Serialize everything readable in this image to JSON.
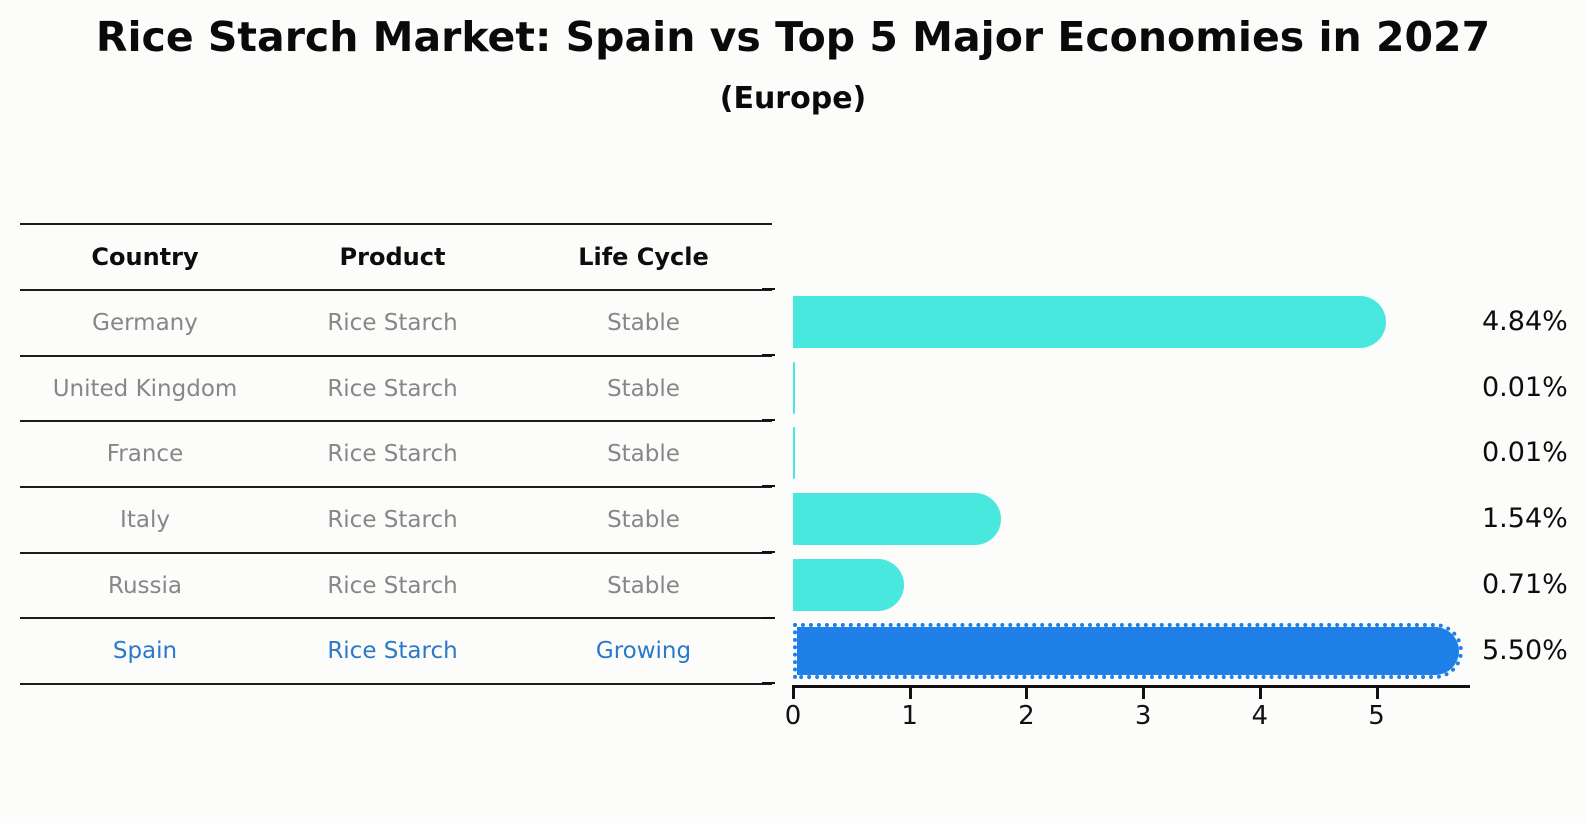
{
  "title": "Rice Starch Market: Spain vs Top 5 Major Economies in 2027",
  "subtitle": "(Europe)",
  "table": {
    "columns": [
      "Country",
      "Product",
      "Life Cycle"
    ]
  },
  "chart_data": {
    "type": "bar",
    "orientation": "horizontal",
    "title": "Rice Starch Market: Spain vs Top 5 Major Economies in 2027",
    "subtitle": "(Europe)",
    "categories": [
      "Germany",
      "United Kingdom",
      "France",
      "Italy",
      "Russia",
      "Spain"
    ],
    "values": [
      4.84,
      0.01,
      0.01,
      1.54,
      0.71,
      5.5
    ],
    "rows": [
      {
        "country": "Germany",
        "product": "Rice Starch",
        "life_cycle": "Stable",
        "value": 4.84,
        "label": "4.84%",
        "highlight": false
      },
      {
        "country": "United Kingdom",
        "product": "Rice Starch",
        "life_cycle": "Stable",
        "value": 0.01,
        "label": "0.01%",
        "highlight": false
      },
      {
        "country": "France",
        "product": "Rice Starch",
        "life_cycle": "Stable",
        "value": 0.01,
        "label": "0.01%",
        "highlight": false
      },
      {
        "country": "Italy",
        "product": "Rice Starch",
        "life_cycle": "Stable",
        "value": 1.54,
        "label": "1.54%",
        "highlight": false
      },
      {
        "country": "Russia",
        "product": "Rice Starch",
        "life_cycle": "Stable",
        "value": 0.71,
        "label": "0.71%",
        "highlight": false
      },
      {
        "country": "Spain",
        "product": "Rice Starch",
        "life_cycle": "Growing",
        "value": 5.5,
        "label": "5.50%",
        "highlight": true
      }
    ],
    "xticks": [
      "0",
      "1",
      "2",
      "3",
      "4",
      "5"
    ],
    "xlim": [
      0,
      5.8
    ],
    "grid": false,
    "legend": "none",
    "colors": {
      "bar": "#48e8de",
      "highlight_bar": "#1e7fe8",
      "highlight_text": "#2b79c9",
      "row_text": "#878787",
      "header_text": "#0d0d0d",
      "axis": "#111111"
    }
  }
}
